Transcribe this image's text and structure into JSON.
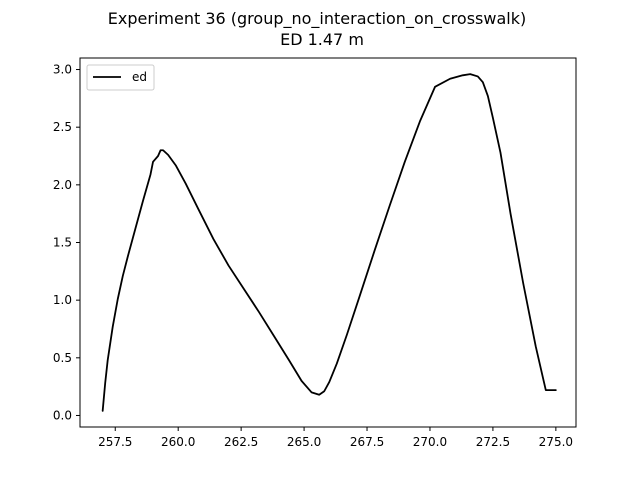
{
  "chart_data": {
    "type": "line",
    "title": "Experiment 36 (group_no_interaction_on_crosswalk)",
    "subtitle": "ED 1.47 m",
    "xlabel": "",
    "ylabel": "",
    "xlim": [
      256.1,
      275.8
    ],
    "ylim": [
      -0.1,
      3.1
    ],
    "xticks": [
      257.5,
      260.0,
      262.5,
      265.0,
      267.5,
      270.0,
      272.5,
      275.0
    ],
    "xtick_labels": [
      "257.5",
      "260.0",
      "262.5",
      "265.0",
      "267.5",
      "270.0",
      "272.5",
      "275.0"
    ],
    "yticks": [
      0.0,
      0.5,
      1.0,
      1.5,
      2.0,
      2.5,
      3.0
    ],
    "ytick_labels": [
      "0.0",
      "0.5",
      "1.0",
      "1.5",
      "2.0",
      "2.5",
      "3.0"
    ],
    "grid": false,
    "legend_position": "top-left",
    "series": [
      {
        "name": "ed",
        "color": "#000000",
        "x": [
          257.0,
          257.1,
          257.2,
          257.4,
          257.6,
          257.8,
          258.0,
          258.3,
          258.6,
          258.9,
          259.0,
          259.2,
          259.3,
          259.4,
          259.6,
          259.9,
          260.3,
          260.8,
          261.4,
          262.0,
          262.6,
          263.2,
          263.8,
          264.4,
          264.9,
          265.3,
          265.6,
          265.8,
          266.0,
          266.3,
          266.7,
          267.2,
          267.8,
          268.4,
          269.0,
          269.6,
          270.2,
          270.8,
          271.3,
          271.6,
          271.9,
          272.1,
          272.3,
          272.5,
          272.8,
          273.2,
          273.7,
          274.2,
          274.6,
          275.0
        ],
        "y": [
          0.04,
          0.28,
          0.48,
          0.77,
          1.01,
          1.21,
          1.38,
          1.62,
          1.86,
          2.09,
          2.2,
          2.25,
          2.3,
          2.3,
          2.26,
          2.17,
          2.01,
          1.79,
          1.53,
          1.3,
          1.1,
          0.9,
          0.69,
          0.48,
          0.3,
          0.2,
          0.18,
          0.21,
          0.29,
          0.45,
          0.7,
          1.03,
          1.43,
          1.82,
          2.2,
          2.55,
          2.85,
          2.92,
          2.95,
          2.96,
          2.94,
          2.89,
          2.77,
          2.58,
          2.28,
          1.75,
          1.15,
          0.6,
          0.22,
          0.22
        ]
      }
    ]
  }
}
